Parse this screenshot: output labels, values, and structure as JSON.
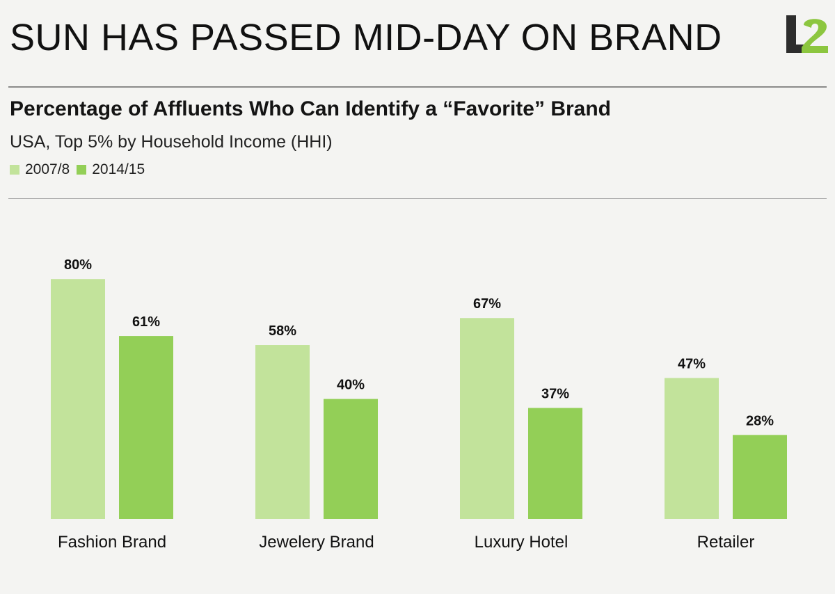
{
  "slide": {
    "headline": "SUN HAS PASSED MID-DAY ON BRAND",
    "logo_text": "L2"
  },
  "colors": {
    "series_2007": "#c2e39b",
    "series_2014": "#93cf57",
    "logo_dark": "#2d2d2d",
    "logo_green": "#8cc63f"
  },
  "chart_data": {
    "type": "bar",
    "title": "Percentage of Affluents Who Can Identify a “Favorite” Brand",
    "subtitle": "USA, Top 5% by Household Income (HHI)",
    "categories": [
      "Fashion Brand",
      "Jewelery Brand",
      "Luxury Hotel",
      "Retailer"
    ],
    "series": [
      {
        "name": "2007/8",
        "values": [
          80,
          58,
          67,
          47
        ],
        "labels": [
          "80%",
          "58%",
          "67%",
          "47%"
        ]
      },
      {
        "name": "2014/15",
        "values": [
          61,
          40,
          37,
          28
        ],
        "labels": [
          "61%",
          "40%",
          "37%",
          "28%"
        ]
      }
    ],
    "ylim": [
      0,
      100
    ],
    "legend_position": "top-left",
    "grid": false
  }
}
